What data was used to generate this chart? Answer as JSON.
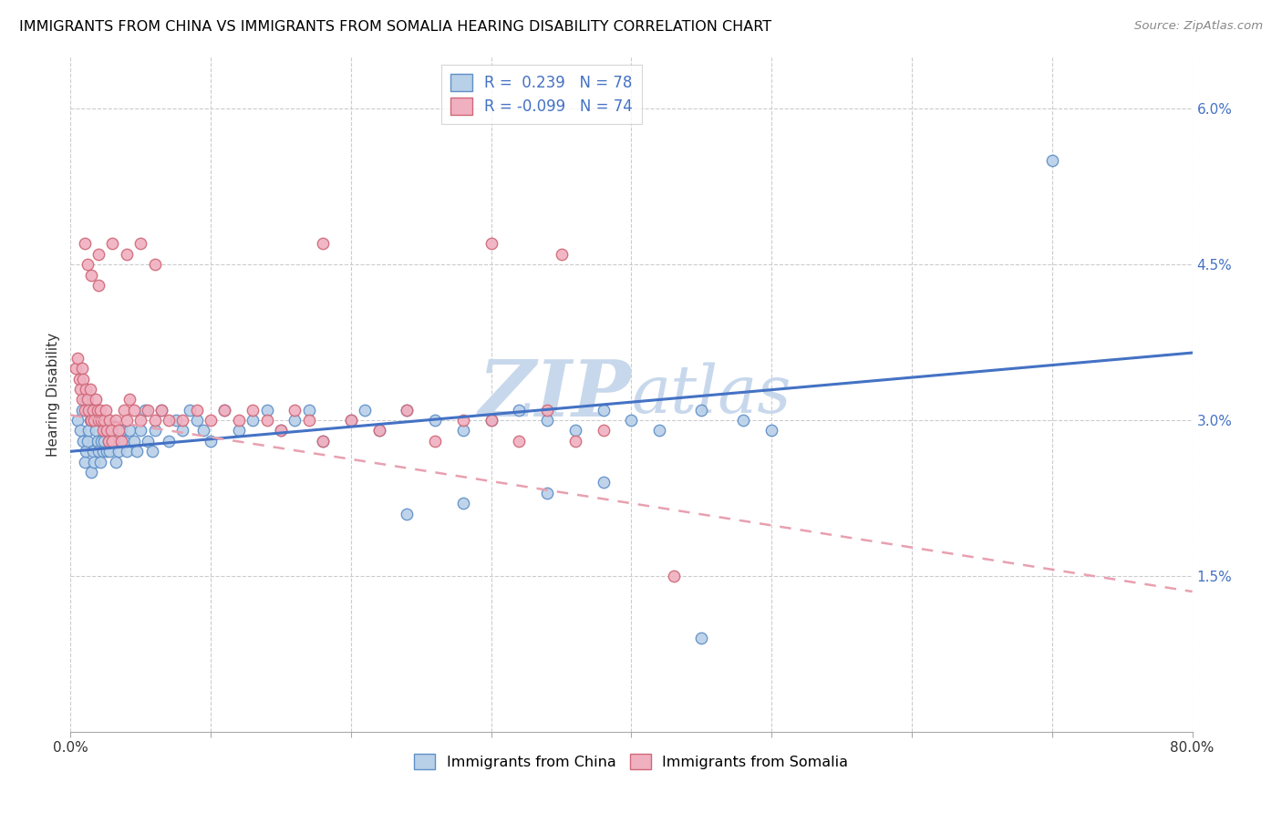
{
  "title": "IMMIGRANTS FROM CHINA VS IMMIGRANTS FROM SOMALIA HEARING DISABILITY CORRELATION CHART",
  "source": "Source: ZipAtlas.com",
  "ylabel": "Hearing Disability",
  "x_min": 0.0,
  "x_max": 0.8,
  "y_min": 0.0,
  "y_max": 0.065,
  "x_tick_positions": [
    0.0,
    0.1,
    0.2,
    0.3,
    0.4,
    0.5,
    0.6,
    0.7,
    0.8
  ],
  "x_tick_labels": [
    "0.0%",
    "",
    "",
    "",
    "",
    "",
    "",
    "",
    "80.0%"
  ],
  "y_ticks_right": [
    0.015,
    0.03,
    0.045,
    0.06
  ],
  "y_tick_labels_right": [
    "1.5%",
    "3.0%",
    "4.5%",
    "6.0%"
  ],
  "color_china_face": "#b8d0e8",
  "color_china_edge": "#6090c8",
  "color_somalia_face": "#f0b0c0",
  "color_somalia_edge": "#d06878",
  "line_color_china": "#4472c4",
  "line_color_somalia": "#e8a0b0",
  "watermark_color": "#c8d8ec",
  "legend_R_china": "0.239",
  "legend_N_china": "78",
  "legend_R_somalia": "-0.099",
  "legend_N_somalia": "74",
  "china_line_x0": 0.0,
  "china_line_y0": 0.027,
  "china_line_x1": 0.8,
  "china_line_y1": 0.0365,
  "somalia_line_x0": 0.0,
  "somalia_line_y0": 0.0305,
  "somalia_line_x1": 0.8,
  "somalia_line_y1": 0.0135,
  "china_points_x": [
    0.005,
    0.007,
    0.008,
    0.009,
    0.01,
    0.01,
    0.011,
    0.012,
    0.013,
    0.014,
    0.015,
    0.015,
    0.016,
    0.017,
    0.018,
    0.019,
    0.02,
    0.021,
    0.022,
    0.023,
    0.024,
    0.025,
    0.026,
    0.027,
    0.028,
    0.029,
    0.03,
    0.032,
    0.034,
    0.036,
    0.038,
    0.04,
    0.042,
    0.045,
    0.047,
    0.05,
    0.053,
    0.055,
    0.058,
    0.06,
    0.065,
    0.07,
    0.075,
    0.08,
    0.085,
    0.09,
    0.095,
    0.1,
    0.11,
    0.12,
    0.13,
    0.14,
    0.15,
    0.16,
    0.17,
    0.18,
    0.2,
    0.21,
    0.22,
    0.24,
    0.26,
    0.28,
    0.3,
    0.32,
    0.34,
    0.36,
    0.38,
    0.4,
    0.42,
    0.45,
    0.48,
    0.5,
    0.38,
    0.34,
    0.28,
    0.24,
    0.45,
    0.7
  ],
  "china_points_y": [
    0.03,
    0.029,
    0.031,
    0.028,
    0.026,
    0.032,
    0.027,
    0.028,
    0.029,
    0.03,
    0.025,
    0.031,
    0.027,
    0.026,
    0.029,
    0.028,
    0.027,
    0.026,
    0.028,
    0.027,
    0.028,
    0.029,
    0.027,
    0.028,
    0.027,
    0.029,
    0.028,
    0.026,
    0.027,
    0.029,
    0.028,
    0.027,
    0.029,
    0.028,
    0.027,
    0.029,
    0.031,
    0.028,
    0.027,
    0.029,
    0.031,
    0.028,
    0.03,
    0.029,
    0.031,
    0.03,
    0.029,
    0.028,
    0.031,
    0.029,
    0.03,
    0.031,
    0.029,
    0.03,
    0.031,
    0.028,
    0.03,
    0.031,
    0.029,
    0.031,
    0.03,
    0.029,
    0.03,
    0.031,
    0.03,
    0.029,
    0.031,
    0.03,
    0.029,
    0.031,
    0.03,
    0.029,
    0.024,
    0.023,
    0.022,
    0.021,
    0.009,
    0.055
  ],
  "somalia_points_x": [
    0.004,
    0.005,
    0.006,
    0.007,
    0.008,
    0.008,
    0.009,
    0.01,
    0.011,
    0.012,
    0.013,
    0.014,
    0.015,
    0.016,
    0.017,
    0.018,
    0.019,
    0.02,
    0.021,
    0.022,
    0.023,
    0.024,
    0.025,
    0.026,
    0.027,
    0.028,
    0.029,
    0.03,
    0.032,
    0.034,
    0.036,
    0.038,
    0.04,
    0.042,
    0.045,
    0.05,
    0.055,
    0.06,
    0.065,
    0.07,
    0.08,
    0.09,
    0.1,
    0.11,
    0.12,
    0.13,
    0.14,
    0.15,
    0.16,
    0.17,
    0.18,
    0.2,
    0.22,
    0.24,
    0.26,
    0.28,
    0.3,
    0.32,
    0.34,
    0.36,
    0.38,
    0.43,
    0.18,
    0.3,
    0.35,
    0.01,
    0.02,
    0.03,
    0.04,
    0.05,
    0.06,
    0.012,
    0.015,
    0.02
  ],
  "somalia_points_y": [
    0.035,
    0.036,
    0.034,
    0.033,
    0.035,
    0.032,
    0.034,
    0.031,
    0.033,
    0.032,
    0.031,
    0.033,
    0.03,
    0.031,
    0.03,
    0.032,
    0.031,
    0.03,
    0.031,
    0.03,
    0.029,
    0.03,
    0.031,
    0.029,
    0.028,
    0.03,
    0.029,
    0.028,
    0.03,
    0.029,
    0.028,
    0.031,
    0.03,
    0.032,
    0.031,
    0.03,
    0.031,
    0.03,
    0.031,
    0.03,
    0.03,
    0.031,
    0.03,
    0.031,
    0.03,
    0.031,
    0.03,
    0.029,
    0.031,
    0.03,
    0.028,
    0.03,
    0.029,
    0.031,
    0.028,
    0.03,
    0.03,
    0.028,
    0.031,
    0.028,
    0.029,
    0.015,
    0.047,
    0.047,
    0.046,
    0.047,
    0.046,
    0.047,
    0.046,
    0.047,
    0.045,
    0.045,
    0.044,
    0.043
  ]
}
